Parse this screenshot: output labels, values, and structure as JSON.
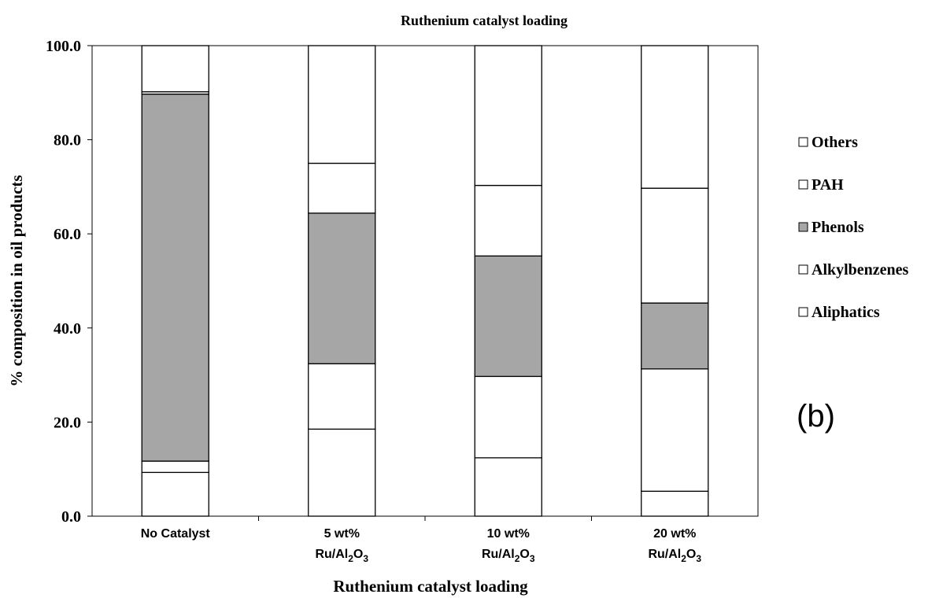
{
  "chart_data": {
    "type": "bar",
    "stacked": true,
    "title": "Ruthenium catalyst loading",
    "xlabel": "Ruthenium catalyst loading",
    "ylabel": "% composition in oil products",
    "ylim": [
      0,
      100
    ],
    "yticks": [
      "0.0",
      "20.0",
      "40.0",
      "60.0",
      "80.0",
      "100.0"
    ],
    "categories": [
      {
        "line1": "No Catalyst",
        "line2_prefix": "",
        "line2_sub1": "",
        "line2_mid": "",
        "line2_sub2": ""
      },
      {
        "line1": "5 wt%",
        "line2_prefix": "Ru/Al",
        "line2_sub1": "2",
        "line2_mid": "O",
        "line2_sub2": "3"
      },
      {
        "line1": "10 wt%",
        "line2_prefix": "Ru/Al",
        "line2_sub1": "2",
        "line2_mid": "O",
        "line2_sub2": "3"
      },
      {
        "line1": "20 wt%",
        "line2_prefix": "Ru/Al",
        "line2_sub1": "2",
        "line2_mid": "O",
        "line2_sub2": "3"
      }
    ],
    "series": [
      {
        "name": "Aliphatics",
        "color": "#ffffff",
        "values": [
          9.3,
          18.5,
          12.4,
          5.3
        ]
      },
      {
        "name": "Alkylbenzenes",
        "color": "#ffffff",
        "values": [
          2.4,
          13.9,
          17.3,
          26.0
        ]
      },
      {
        "name": "Phenols",
        "color": "#a6a6a6",
        "values": [
          78.0,
          32.0,
          25.6,
          14.0
        ]
      },
      {
        "name": "PAH",
        "color": "#ffffff",
        "values": [
          0.5,
          10.6,
          15.0,
          24.4
        ]
      },
      {
        "name": "Others",
        "color": "#ffffff",
        "values": [
          9.8,
          25.0,
          29.7,
          30.3
        ]
      }
    ],
    "legend_order": [
      "Others",
      "PAH",
      "Phenols",
      "Alkylbenzenes",
      "Aliphatics"
    ],
    "legend_position": "right",
    "grid": false
  },
  "panel_label": "(b)"
}
